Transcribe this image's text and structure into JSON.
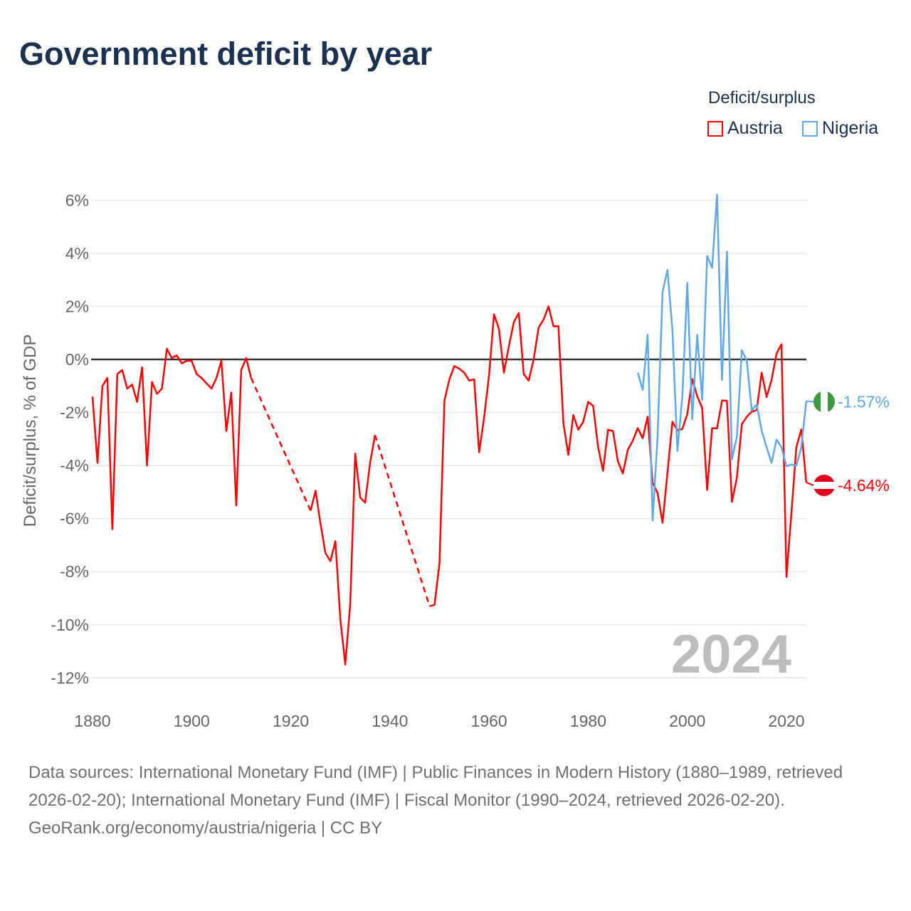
{
  "title": "Government deficit by year",
  "legend": {
    "title": "Deficit/surplus",
    "items": [
      {
        "name": "Austria",
        "color": "#ff0000"
      },
      {
        "name": "Nigeria",
        "color": "#5fa8ea"
      }
    ]
  },
  "footer": {
    "sources": "Data sources: International Monetary Fund (IMF) | Public Finances in Modern History (1880–1989, retrieved 2026-02-20); International Monetary Fund (IMF) | Fiscal Monitor (1990–2024, retrieved 2026-02-20).",
    "credit": "GeoRank.org/economy/austria/nigeria | CC BY"
  },
  "chart_data": {
    "type": "line",
    "title": "Government deficit by year",
    "ylabel": "Deficit/surplus, % of GDP",
    "xlabel": "",
    "xlim": [
      1880,
      2024
    ],
    "ylim": [
      -13,
      6.5
    ],
    "xticks": [
      "1880",
      "1900",
      "1920",
      "1940",
      "1960",
      "1980",
      "2000",
      "2020"
    ],
    "yticks": [
      "6%",
      "4%",
      "2%",
      "0%",
      "-2%",
      "-4%",
      "-6%",
      "-8%",
      "-10%",
      "-12%"
    ],
    "grid": true,
    "legend_position": "top-right",
    "year_label": "2024",
    "end_labels": {
      "Austria": "-4.64%",
      "Nigeria": "-1.57%"
    },
    "series": [
      {
        "name": "Austria",
        "color": "#ff0000",
        "points": [
          [
            1880,
            -1.4
          ],
          [
            1881,
            -3.9
          ],
          [
            1882,
            -1.0
          ],
          [
            1883,
            -0.7
          ],
          [
            1884,
            -6.4
          ],
          [
            1885,
            -0.55
          ],
          [
            1886,
            -0.4
          ],
          [
            1887,
            -1.1
          ],
          [
            1888,
            -0.95
          ],
          [
            1889,
            -1.6
          ],
          [
            1890,
            -0.3
          ],
          [
            1891,
            -4.0
          ],
          [
            1892,
            -0.85
          ],
          [
            1893,
            -1.3
          ],
          [
            1894,
            -1.1
          ],
          [
            1895,
            0.4
          ],
          [
            1896,
            0.05
          ],
          [
            1897,
            0.15
          ],
          [
            1898,
            -0.15
          ],
          [
            1899,
            -0.05
          ],
          [
            1900,
            -0.05
          ],
          [
            1901,
            -0.55
          ],
          [
            1902,
            -0.7
          ],
          [
            1903,
            -0.9
          ],
          [
            1904,
            -1.1
          ],
          [
            1905,
            -0.7
          ],
          [
            1906,
            -0.05
          ],
          [
            1907,
            -2.7
          ],
          [
            1908,
            -1.25
          ],
          [
            1909,
            -5.5
          ],
          [
            1910,
            -0.4
          ],
          [
            1911,
            0.05
          ],
          [
            1912,
            -0.7
          ],
          [
            1924,
            -5.7
          ],
          [
            1925,
            -4.95
          ],
          [
            1926,
            -6.2
          ],
          [
            1927,
            -7.3
          ],
          [
            1928,
            -7.6
          ],
          [
            1929,
            -6.85
          ],
          [
            1930,
            -9.8
          ],
          [
            1931,
            -11.5
          ],
          [
            1932,
            -9.2
          ],
          [
            1933,
            -3.55
          ],
          [
            1934,
            -5.2
          ],
          [
            1935,
            -5.4
          ],
          [
            1936,
            -3.9
          ],
          [
            1937,
            -2.85
          ],
          [
            1948,
            -9.3
          ],
          [
            1949,
            -9.25
          ],
          [
            1950,
            -7.7
          ],
          [
            1951,
            -1.55
          ],
          [
            1952,
            -0.75
          ],
          [
            1953,
            -0.25
          ],
          [
            1954,
            -0.35
          ],
          [
            1955,
            -0.5
          ],
          [
            1956,
            -0.8
          ],
          [
            1957,
            -0.75
          ],
          [
            1958,
            -3.5
          ],
          [
            1959,
            -2.2
          ],
          [
            1960,
            -0.6
          ],
          [
            1961,
            1.7
          ],
          [
            1962,
            1.15
          ],
          [
            1963,
            -0.5
          ],
          [
            1964,
            0.5
          ],
          [
            1965,
            1.4
          ],
          [
            1966,
            1.75
          ],
          [
            1967,
            -0.55
          ],
          [
            1968,
            -0.8
          ],
          [
            1969,
            0.0
          ],
          [
            1970,
            1.2
          ],
          [
            1971,
            1.5
          ],
          [
            1972,
            2.0
          ],
          [
            1973,
            1.25
          ],
          [
            1974,
            1.25
          ],
          [
            1975,
            -2.4
          ],
          [
            1976,
            -3.6
          ],
          [
            1977,
            -2.1
          ],
          [
            1978,
            -2.65
          ],
          [
            1979,
            -2.35
          ],
          [
            1980,
            -1.6
          ],
          [
            1981,
            -1.75
          ],
          [
            1982,
            -3.3
          ],
          [
            1983,
            -4.2
          ],
          [
            1984,
            -2.65
          ],
          [
            1985,
            -2.7
          ],
          [
            1986,
            -3.85
          ],
          [
            1987,
            -4.3
          ],
          [
            1988,
            -3.4
          ],
          [
            1989,
            -3.07
          ],
          [
            1990,
            -2.59
          ],
          [
            1991,
            -2.97
          ],
          [
            1992,
            -2.16
          ],
          [
            1993,
            -4.66
          ],
          [
            1994,
            -5.03
          ],
          [
            1995,
            -6.16
          ],
          [
            1996,
            -4.27
          ],
          [
            1997,
            -2.35
          ],
          [
            1998,
            -2.67
          ],
          [
            1999,
            -2.62
          ],
          [
            2000,
            -2.06
          ],
          [
            2001,
            -0.74
          ],
          [
            2002,
            -1.39
          ],
          [
            2003,
            -1.83
          ],
          [
            2004,
            -4.92
          ],
          [
            2005,
            -2.59
          ],
          [
            2006,
            -2.6
          ],
          [
            2007,
            -1.55
          ],
          [
            2008,
            -1.56
          ],
          [
            2009,
            -5.37
          ],
          [
            2010,
            -4.46
          ],
          [
            2011,
            -2.44
          ],
          [
            2012,
            -2.16
          ],
          [
            2013,
            -1.97
          ],
          [
            2014,
            -1.91
          ],
          [
            2015,
            -0.5
          ],
          [
            2016,
            -1.42
          ],
          [
            2017,
            -0.77
          ],
          [
            2018,
            0.22
          ],
          [
            2019,
            0.57
          ],
          [
            2020,
            -8.2
          ],
          [
            2021,
            -5.8
          ],
          [
            2022,
            -3.31
          ],
          [
            2023,
            -2.64
          ],
          [
            2024,
            -4.64
          ]
        ]
      },
      {
        "name": "Nigeria",
        "color": "#5fa8ea",
        "points": [
          [
            1990,
            -0.5
          ],
          [
            1991,
            -1.15
          ],
          [
            1992,
            0.93
          ],
          [
            1993,
            -6.07
          ],
          [
            1994,
            -2.92
          ],
          [
            1995,
            2.54
          ],
          [
            1996,
            3.37
          ],
          [
            1997,
            1.1
          ],
          [
            1998,
            -3.45
          ],
          [
            1999,
            -1.39
          ],
          [
            2000,
            2.88
          ],
          [
            2001,
            -2.25
          ],
          [
            2002,
            0.93
          ],
          [
            2003,
            -1.53
          ],
          [
            2004,
            3.9
          ],
          [
            2005,
            3.45
          ],
          [
            2006,
            6.21
          ],
          [
            2007,
            -0.77
          ],
          [
            2008,
            4.06
          ],
          [
            2009,
            -3.77
          ],
          [
            2010,
            -2.92
          ],
          [
            2011,
            0.35
          ],
          [
            2012,
            -0.05
          ],
          [
            2013,
            -1.92
          ],
          [
            2014,
            -1.7
          ],
          [
            2015,
            -2.68
          ],
          [
            2016,
            -3.31
          ],
          [
            2017,
            -3.9
          ],
          [
            2018,
            -3.02
          ],
          [
            2019,
            -3.31
          ],
          [
            2020,
            -4.03
          ],
          [
            2021,
            -3.96
          ],
          [
            2022,
            -4.0
          ],
          [
            2023,
            -3.31
          ],
          [
            2024,
            -1.57
          ]
        ]
      }
    ]
  }
}
